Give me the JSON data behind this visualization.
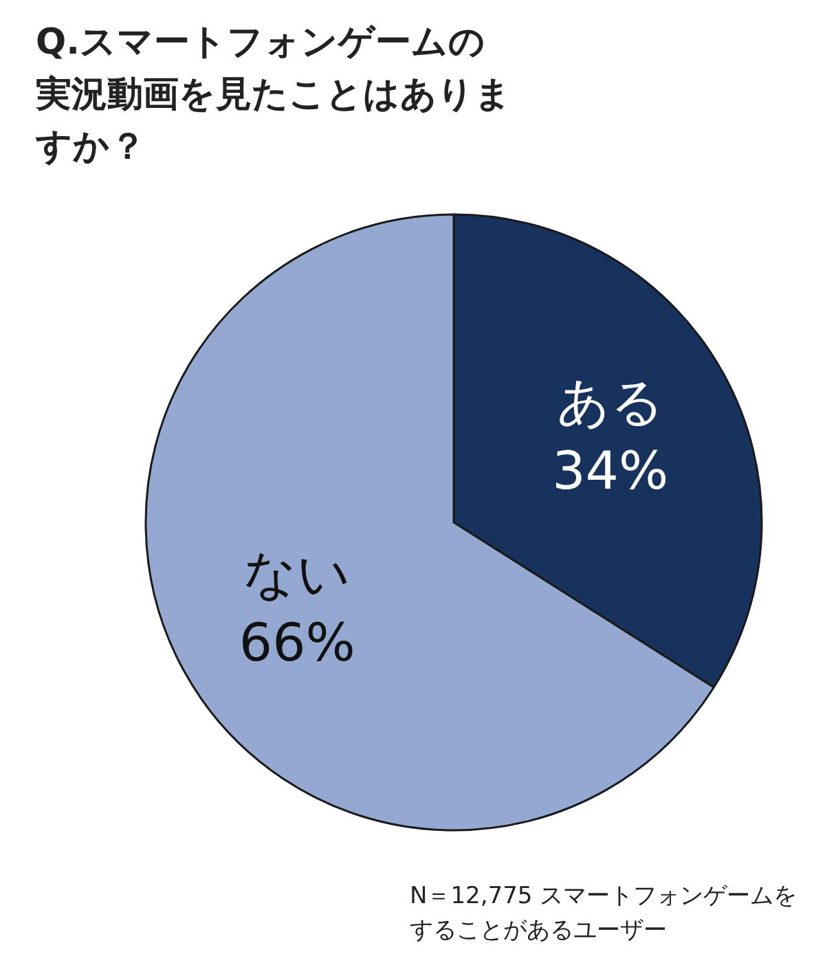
{
  "chart_data": {
    "type": "pie",
    "title": "Q.スマートフォンゲームの実況動画を見たことはありますか？",
    "categories": [
      "ある",
      "ない"
    ],
    "values": [
      34,
      66
    ],
    "colors": [
      "#17325c",
      "#94a9d1"
    ],
    "value_labels": [
      "34%",
      "66%"
    ],
    "annotations": [
      "N＝12,775 スマートフォンゲームをすることがあるユーザー"
    ]
  }
}
